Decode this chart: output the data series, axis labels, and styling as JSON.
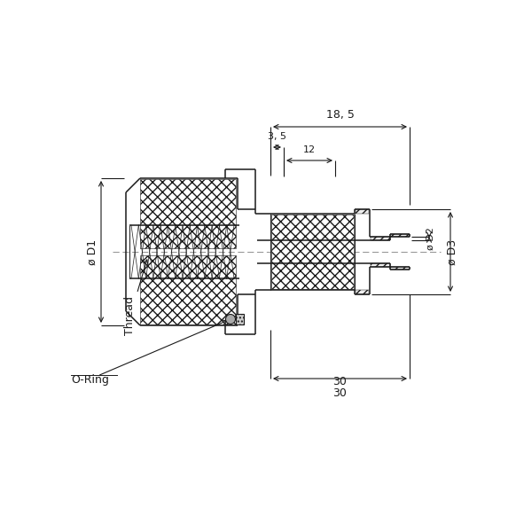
{
  "bg_color": "#ffffff",
  "line_color": "#1a1a1a",
  "annotations": {
    "dim_18_5": "18, 5",
    "dim_3_5": "3, 5",
    "dim_12": "12",
    "dim_30": "30",
    "dim_D1": "ø D1",
    "dim_D2": "ø D2",
    "dim_D3": "ø D3",
    "label_thread": "Thread",
    "label_oring": "O-Ring"
  }
}
